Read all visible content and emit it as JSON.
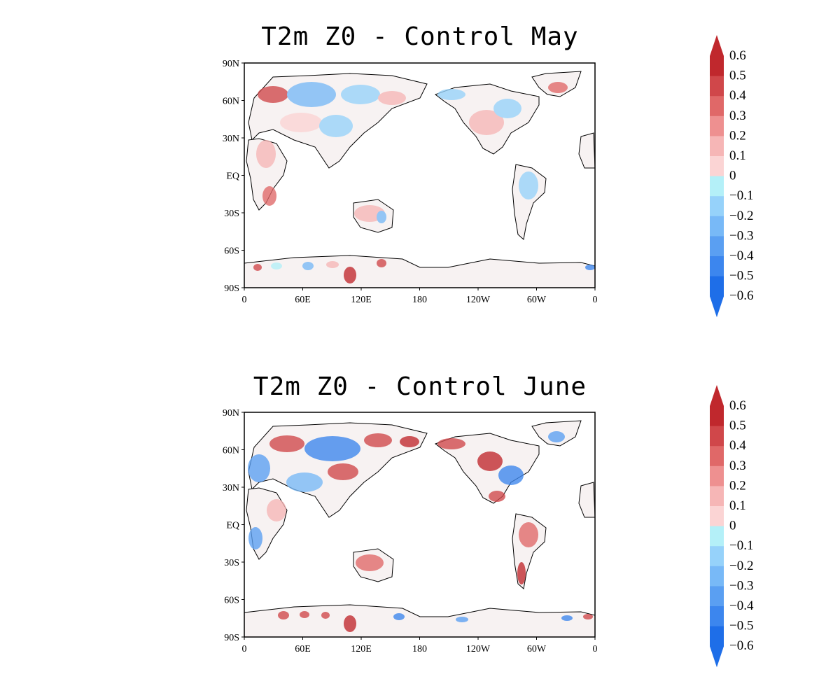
{
  "panels": [
    {
      "title": "T2m Z0 - Control May",
      "lat_labels": [
        "90N",
        "60N",
        "30N",
        "EQ",
        "30S",
        "60S",
        "90S"
      ],
      "lon_labels": [
        "0",
        "60E",
        "120E",
        "180",
        "120W",
        "60W",
        "0"
      ]
    },
    {
      "title": "T2m Z0 - Control June",
      "lat_labels": [
        "90N",
        "60N",
        "30N",
        "EQ",
        "30S",
        "60S",
        "90S"
      ],
      "lon_labels": [
        "0",
        "60E",
        "120E",
        "180",
        "120W",
        "60W",
        "0"
      ]
    }
  ],
  "colorbar": {
    "labels": [
      "0.6",
      "0.5",
      "0.4",
      "0.3",
      "0.2",
      "0.1",
      "0",
      "−0.1",
      "−0.2",
      "−0.3",
      "−0.4",
      "−0.5",
      "−0.6"
    ],
    "colors": [
      "#c0282d",
      "#d0474a",
      "#e06868",
      "#ee9090",
      "#f6b6b6",
      "#fbd4d4",
      "#fdeeee",
      "#b4f0f8",
      "#96d2fa",
      "#78b9f7",
      "#5a9ff2",
      "#3c86ee",
      "#1e6ee8"
    ],
    "low_color": "#1e6ee8",
    "high_color": "#c0282d"
  }
}
